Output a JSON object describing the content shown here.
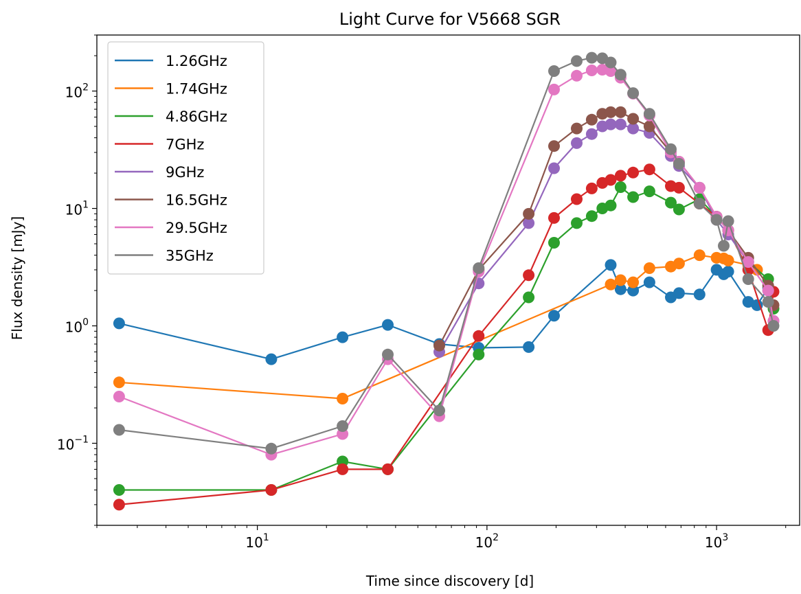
{
  "chart_data": {
    "type": "line",
    "title": "Light Curve for V5668 SGR",
    "xlabel": "Time since discovery [d]",
    "ylabel": "Flux density [mJy]",
    "xscale": "log",
    "yscale": "log",
    "xlim": [
      2.0,
      2300
    ],
    "ylim": [
      0.02,
      300
    ],
    "x_ticks": [
      {
        "value": 10,
        "base": "10",
        "exp": "1"
      },
      {
        "value": 100,
        "base": "10",
        "exp": "2"
      },
      {
        "value": 1000,
        "base": "10",
        "exp": "3"
      }
    ],
    "y_ticks": [
      {
        "value": 0.1,
        "base": "10",
        "exp": "−1"
      },
      {
        "value": 1,
        "base": "10",
        "exp": "0"
      },
      {
        "value": 10,
        "base": "10",
        "exp": "1"
      },
      {
        "value": 100,
        "base": "10",
        "exp": "2"
      }
    ],
    "legend_position": "upper-left",
    "grid": false,
    "series": [
      {
        "name": "1.26GHz",
        "color": "#1f77b4",
        "x": [
          2.5,
          11.5,
          23.5,
          37,
          62,
          92,
          152,
          196,
          346,
          382,
          433,
          510,
          632,
          686,
          843,
          1000,
          1074,
          1124,
          1374,
          1500,
          1678
        ],
        "y": [
          1.05,
          0.52,
          0.8,
          1.02,
          0.7,
          0.65,
          0.66,
          1.22,
          3.3,
          2.05,
          2.0,
          2.35,
          1.75,
          1.9,
          1.85,
          3.0,
          2.75,
          2.9,
          1.6,
          1.5,
          2.1
        ]
      },
      {
        "name": "1.74GHz",
        "color": "#ff7f0e",
        "x": [
          2.5,
          23.5,
          346,
          382,
          433,
          510,
          632,
          686,
          843,
          1000,
          1074,
          1124,
          1374,
          1500
        ],
        "y": [
          0.33,
          0.24,
          2.25,
          2.45,
          2.35,
          3.1,
          3.2,
          3.4,
          4.0,
          3.8,
          3.75,
          3.6,
          3.3,
          3.0
        ]
      },
      {
        "name": "4.86GHz",
        "color": "#2ca02c",
        "x": [
          2.5,
          11.5,
          23.5,
          37,
          92,
          152,
          196,
          246,
          286,
          318,
          346,
          382,
          433,
          510,
          632,
          686,
          843,
          1000,
          1124,
          1374,
          1678,
          1770
        ],
        "y": [
          0.04,
          0.04,
          0.07,
          0.06,
          0.57,
          1.75,
          5.1,
          7.5,
          8.6,
          10.0,
          10.6,
          15.2,
          12.5,
          14.0,
          11.2,
          9.8,
          12.0,
          8.5,
          6.5,
          3.5,
          2.5,
          1.4
        ]
      },
      {
        "name": "7GHz",
        "color": "#d62728",
        "x": [
          2.5,
          11.5,
          23.5,
          37,
          92,
          152,
          196,
          246,
          286,
          318,
          346,
          382,
          433,
          510,
          632,
          686,
          843,
          1000,
          1124,
          1374,
          1678,
          1770
        ],
        "y": [
          0.03,
          0.04,
          0.06,
          0.06,
          0.82,
          2.7,
          8.3,
          12.0,
          14.8,
          16.5,
          17.5,
          19.0,
          20.2,
          21.5,
          15.5,
          15.0,
          11.0,
          8.5,
          6.5,
          3.0,
          0.92,
          1.95
        ]
      },
      {
        "name": "9GHz",
        "color": "#9467bd",
        "x": [
          62,
          92,
          152,
          196,
          246,
          286,
          318,
          346,
          382,
          433,
          510,
          632,
          686,
          843,
          1000,
          1124,
          1374,
          1678,
          1770
        ],
        "y": [
          0.6,
          2.3,
          7.5,
          22.0,
          36.0,
          43.0,
          50.0,
          52.0,
          52.0,
          48.0,
          44.0,
          28.0,
          23.0,
          15.0,
          8.0,
          6.0,
          3.5,
          2.0,
          1.1
        ]
      },
      {
        "name": "16.5GHz",
        "color": "#8c564b",
        "x": [
          62,
          92,
          152,
          196,
          246,
          286,
          318,
          346,
          382,
          433,
          510,
          632,
          686,
          843,
          1000,
          1124,
          1374,
          1678,
          1770
        ],
        "y": [
          0.68,
          3.0,
          9.0,
          34.0,
          48.0,
          57.0,
          64.0,
          66.0,
          66.0,
          58.0,
          50.0,
          30.0,
          25.0,
          15.0,
          8.5,
          6.5,
          3.8,
          2.2,
          1.5
        ]
      },
      {
        "name": "29.5GHz",
        "color": "#e377c2",
        "x": [
          2.5,
          11.5,
          23.5,
          37,
          62,
          92,
          196,
          246,
          286,
          318,
          346,
          382,
          433,
          510,
          632,
          686,
          843,
          1000,
          1124,
          1374,
          1678,
          1770
        ],
        "y": [
          0.25,
          0.08,
          0.12,
          0.52,
          0.17,
          2.9,
          103.0,
          135.0,
          150.0,
          152.0,
          148.0,
          130.0,
          95.0,
          62.0,
          30.0,
          25.0,
          15.0,
          8.5,
          6.5,
          3.5,
          2.0,
          1.1
        ]
      },
      {
        "name": "35GHz",
        "color": "#7f7f7f",
        "x": [
          2.5,
          11.5,
          23.5,
          37,
          62,
          92,
          196,
          246,
          286,
          318,
          346,
          382,
          433,
          510,
          632,
          686,
          843,
          1000,
          1074,
          1124,
          1374,
          1678,
          1770
        ],
        "y": [
          0.13,
          0.09,
          0.14,
          0.57,
          0.19,
          3.1,
          148.0,
          180.0,
          192.0,
          190.0,
          175.0,
          138.0,
          96.0,
          64.0,
          32.0,
          24.0,
          11.0,
          8.0,
          4.8,
          7.8,
          2.5,
          1.6,
          1.0
        ]
      }
    ]
  }
}
